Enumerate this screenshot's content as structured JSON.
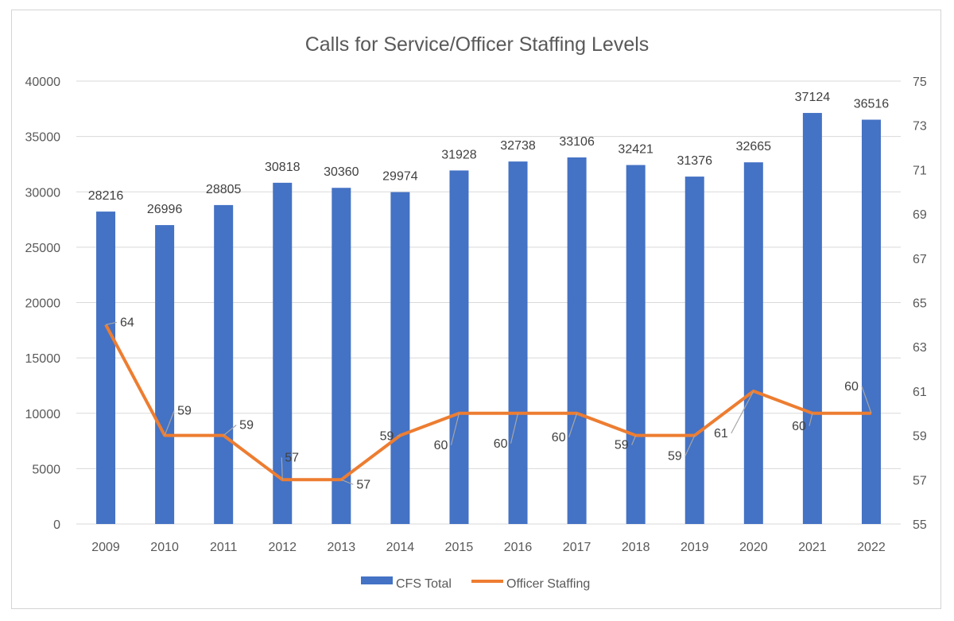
{
  "chart_data": {
    "type": "bar",
    "title": "Calls for Service/Officer  Staffing Levels",
    "categories": [
      "2009",
      "2010",
      "2011",
      "2012",
      "2013",
      "2014",
      "2015",
      "2016",
      "2017",
      "2018",
      "2019",
      "2020",
      "2021",
      "2022"
    ],
    "series": [
      {
        "name": "CFS Total",
        "type": "bar",
        "axis": "left",
        "color": "#4472C4",
        "values": [
          28216,
          26996,
          28805,
          30818,
          30360,
          29974,
          31928,
          32738,
          33106,
          32421,
          31376,
          32665,
          37124,
          36516
        ]
      },
      {
        "name": "Officer Staffing",
        "type": "line",
        "axis": "right",
        "color": "#ED7D31",
        "values": [
          64,
          59,
          59,
          57,
          57,
          59,
          60,
          60,
          60,
          59,
          59,
          61,
          60,
          60
        ]
      }
    ],
    "y_left": {
      "min": 0,
      "max": 40000,
      "ticks": [
        0,
        5000,
        10000,
        15000,
        20000,
        25000,
        30000,
        35000,
        40000
      ]
    },
    "y_right": {
      "min": 55,
      "max": 75,
      "ticks": [
        55,
        57,
        59,
        61,
        63,
        65,
        67,
        69,
        71,
        73,
        75
      ]
    },
    "grid": true,
    "legend_position": "bottom"
  }
}
